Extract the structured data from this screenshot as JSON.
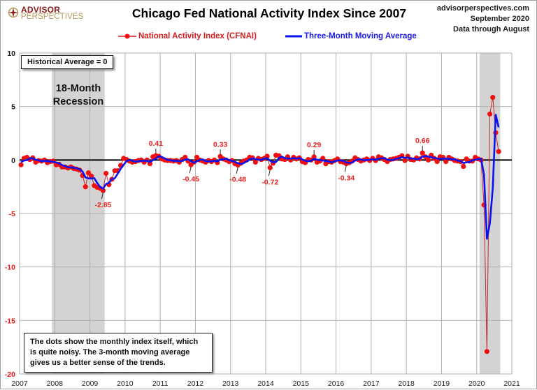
{
  "header": {
    "logo_top": "ADVISOR",
    "logo_bottom": "PERSPECTIVES",
    "source_lines": [
      "advisorperspectives.com",
      "September 2020",
      "Data through August"
    ]
  },
  "colors": {
    "index": "#f01010",
    "index_line": "#c0272d",
    "moving_average": "#0b12f0",
    "recession": "#d3d3d3",
    "grid": "#b0b0b0",
    "zero_line": "#000000",
    "positive_label": "#111111",
    "negative_label": "#f01010"
  },
  "annotations": {
    "historical_average": "Historical Average = 0",
    "recession_label_line1": "18-Month",
    "recession_label_line2": "Recession",
    "info_text": "The dots show the monthly  index itself, which is quite noisy. The 3-month moving average gives us a better sense of the trends."
  },
  "chart_data": {
    "type": "line",
    "title": "Chicago Fed National Activity Index Since 2007",
    "xlabel": "",
    "ylabel": "",
    "xlim": [
      2007,
      2021
    ],
    "ylim": [
      -20,
      10
    ],
    "yticks": [
      10,
      5,
      0,
      -5,
      -10,
      -15,
      -20
    ],
    "xticks": [
      "2007",
      "2008",
      "2009",
      "2010",
      "2011",
      "2012",
      "2013",
      "2014",
      "2015",
      "2016",
      "2017",
      "2018",
      "2019",
      "2020",
      "2021"
    ],
    "grid": true,
    "legend": "top-center",
    "recessions": [
      {
        "start": 2007.92,
        "end": 2009.42
      },
      {
        "start": 2020.08,
        "end": 2020.67
      }
    ],
    "start_month": "2007-01",
    "series": [
      {
        "name": "National Activity Index (CFNAI)",
        "style": "line-markers",
        "values": [
          -0.45,
          0.15,
          0.25,
          0.05,
          0.2,
          -0.2,
          -0.05,
          -0.1,
          0.0,
          -0.25,
          -0.15,
          -0.1,
          -0.45,
          -0.4,
          -0.65,
          -0.65,
          -0.75,
          -0.65,
          -0.8,
          -0.85,
          -0.95,
          -1.45,
          -2.5,
          -1.2,
          -1.5,
          -2.4,
          -2.55,
          -2.65,
          -2.85,
          -1.25,
          -2.3,
          -1.8,
          -1.0,
          -1.0,
          -0.5,
          0.15,
          0.05,
          -0.1,
          -0.2,
          -0.15,
          -0.05,
          0.0,
          -0.2,
          0.0,
          -0.35,
          0.3,
          0.41,
          0.35,
          0.1,
          0.0,
          -0.05,
          -0.05,
          -0.1,
          -0.05,
          -0.2,
          0.05,
          0.25,
          -0.1,
          -0.45,
          -0.2,
          0.25,
          0.0,
          -0.1,
          -0.2,
          -0.05,
          -0.15,
          0.0,
          -0.25,
          0.33,
          0.1,
          0.0,
          -0.15,
          -0.05,
          -0.35,
          -0.48,
          -0.3,
          -0.1,
          0.0,
          0.25,
          0.2,
          -0.2,
          0.15,
          0.05,
          0.15,
          0.35,
          -0.72,
          -0.3,
          0.45,
          0.4,
          0.1,
          0.05,
          0.3,
          0.0,
          0.25,
          0.1,
          0.2,
          -0.15,
          -0.25,
          0.05,
          0.0,
          0.29,
          -0.2,
          -0.1,
          0.15,
          -0.35,
          -0.15,
          -0.2,
          -0.05,
          0.1,
          -0.15,
          -0.2,
          -0.34,
          -0.25,
          -0.1,
          0.2,
          0.05,
          -0.1,
          0.0,
          0.1,
          -0.05,
          0.15,
          -0.05,
          0.3,
          0.2,
          0.05,
          -0.15,
          0.05,
          0.1,
          0.15,
          0.25,
          0.4,
          -0.05,
          0.35,
          0.05,
          0.0,
          0.2,
          0.1,
          0.66,
          0.3,
          0.0,
          0.45,
          0.15,
          -0.15,
          0.3,
          0.25,
          -0.15,
          0.25,
          0.1,
          -0.05,
          -0.1,
          -0.15,
          -0.6,
          0.1,
          -0.1,
          -0.1,
          0.25,
          0.1,
          0.0,
          -4.2,
          -17.9,
          4.3,
          5.85,
          2.55,
          0.79
        ]
      },
      {
        "name": "Three-Month Moving Average",
        "style": "line",
        "values": [
          -0.2,
          -0.05,
          -0.02,
          0.15,
          0.17,
          0.02,
          -0.02,
          -0.12,
          -0.05,
          -0.12,
          -0.13,
          -0.17,
          -0.23,
          -0.32,
          -0.48,
          -0.57,
          -0.68,
          -0.68,
          -0.73,
          -0.77,
          -0.87,
          -1.08,
          -1.63,
          -1.72,
          -1.73,
          -1.7,
          -2.15,
          -2.53,
          -2.68,
          -2.25,
          -2.13,
          -1.78,
          -1.7,
          -1.27,
          -0.83,
          -0.45,
          -0.1,
          0.03,
          -0.08,
          -0.15,
          -0.13,
          -0.07,
          -0.08,
          -0.07,
          -0.18,
          -0.02,
          0.12,
          0.35,
          0.29,
          0.15,
          0.02,
          -0.03,
          -0.07,
          -0.07,
          -0.12,
          -0.07,
          0.03,
          0.07,
          -0.1,
          -0.25,
          -0.13,
          0.02,
          0.05,
          -0.1,
          -0.12,
          -0.13,
          -0.07,
          -0.13,
          0.03,
          0.06,
          0.14,
          -0.02,
          -0.07,
          -0.18,
          -0.29,
          -0.38,
          -0.29,
          -0.13,
          0.05,
          0.15,
          0.08,
          0.05,
          0.0,
          0.12,
          0.18,
          -0.07,
          -0.22,
          -0.19,
          0.18,
          0.32,
          0.18,
          0.15,
          0.12,
          0.18,
          0.12,
          0.18,
          0.05,
          -0.07,
          -0.12,
          -0.07,
          0.11,
          0.03,
          0.0,
          -0.05,
          -0.1,
          -0.12,
          -0.23,
          -0.13,
          -0.05,
          -0.03,
          -0.08,
          -0.23,
          -0.26,
          -0.23,
          -0.05,
          0.05,
          0.05,
          -0.02,
          0.0,
          0.02,
          0.07,
          0.02,
          0.13,
          0.15,
          0.18,
          0.03,
          -0.02,
          0.0,
          0.1,
          0.17,
          0.27,
          0.2,
          0.23,
          0.12,
          0.13,
          0.08,
          0.1,
          0.32,
          0.35,
          0.32,
          0.25,
          0.2,
          0.15,
          0.1,
          0.13,
          0.13,
          0.12,
          0.07,
          0.07,
          -0.05,
          -0.1,
          -0.28,
          -0.22,
          -0.2,
          -0.03,
          0.02,
          0.08,
          0.12,
          -1.37,
          -7.37,
          -5.93,
          -2.58,
          4.23,
          3.06
        ]
      }
    ],
    "point_labels": [
      {
        "month_index": 28,
        "value": -2.85,
        "text": "-2.85"
      },
      {
        "month_index": 46,
        "value": 0.41,
        "text": "0.41"
      },
      {
        "month_index": 58,
        "value": -0.45,
        "text": "-0.45"
      },
      {
        "month_index": 68,
        "value": 0.33,
        "text": "0.33"
      },
      {
        "month_index": 74,
        "value": -0.48,
        "text": "-0.48"
      },
      {
        "month_index": 85,
        "value": -0.72,
        "text": "-0.72"
      },
      {
        "month_index": 100,
        "value": 0.29,
        "text": "0.29"
      },
      {
        "month_index": 111,
        "value": -0.34,
        "text": "-0.34"
      },
      {
        "month_index": 137,
        "value": 0.66,
        "text": "0.66"
      }
    ]
  }
}
